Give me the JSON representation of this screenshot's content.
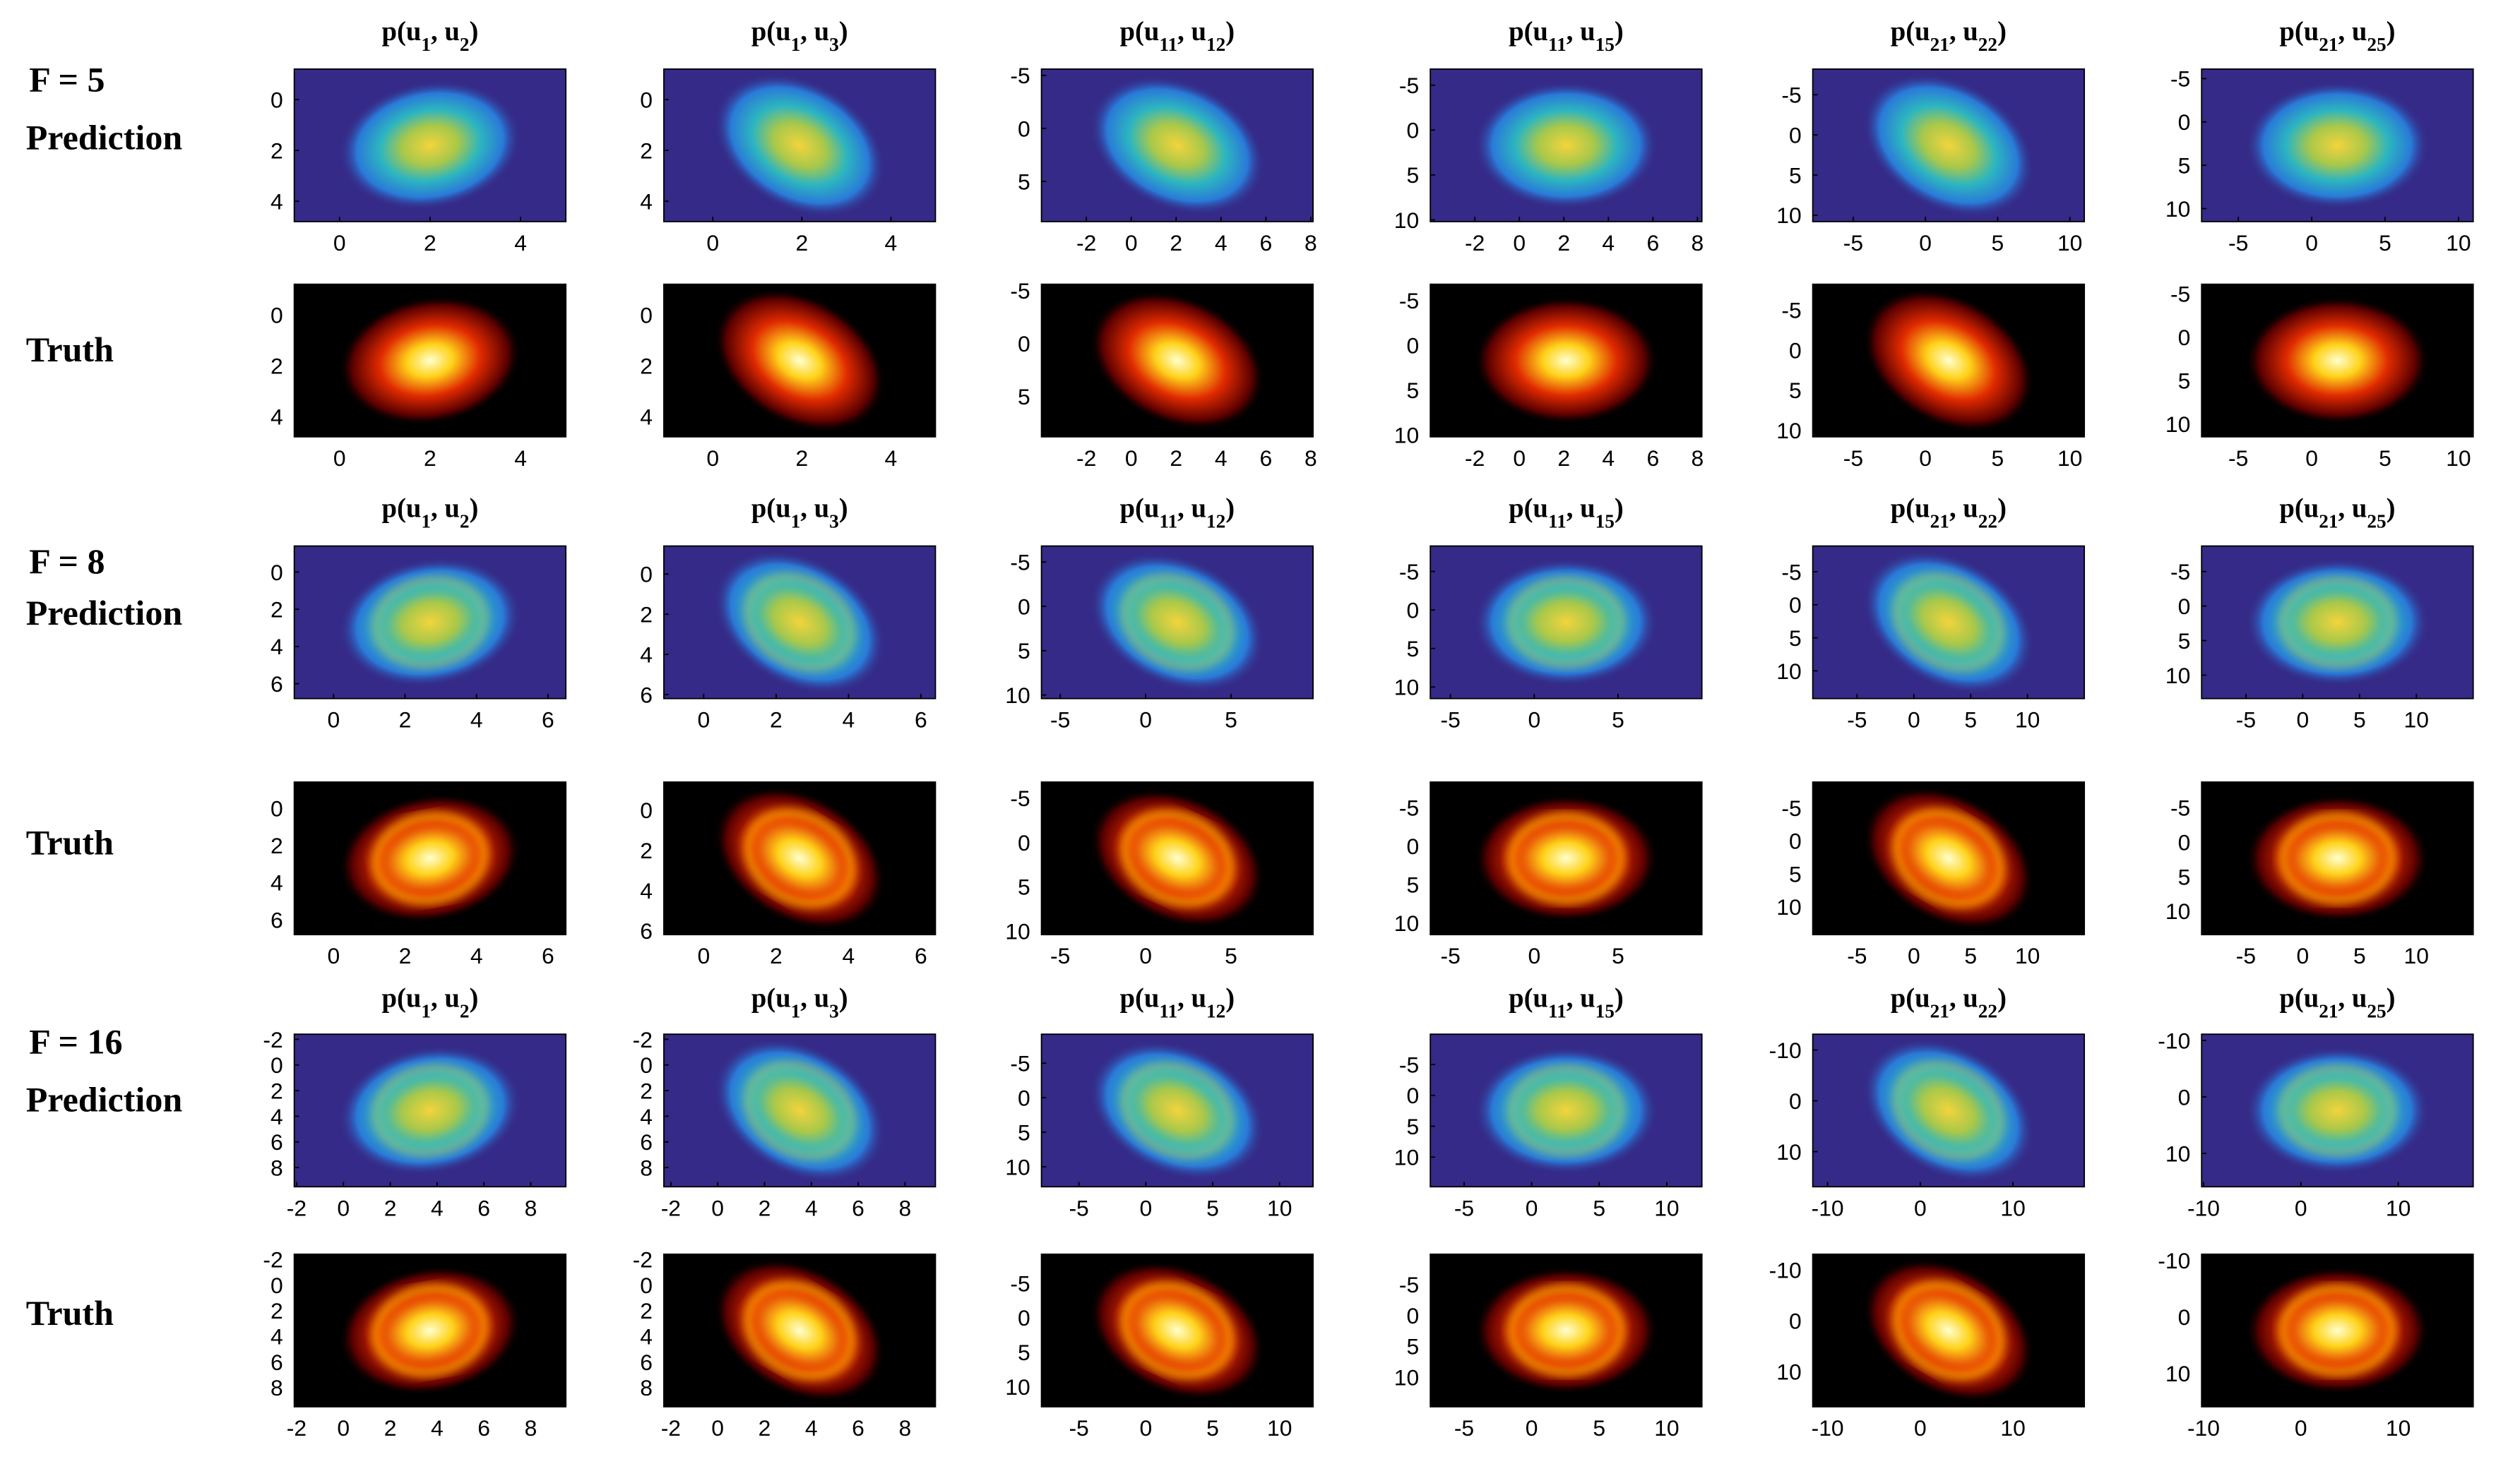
{
  "groups": [
    {
      "label": "F = 5",
      "rows": [
        {
          "label": "Prediction",
          "colormap": "parula"
        },
        {
          "label": "Truth",
          "colormap": "hot"
        }
      ],
      "y_reversed": true,
      "panels": [
        {
          "type": "heatmap",
          "title": [
            "p(u",
            "1",
            ", u",
            "2",
            ")"
          ],
          "xlim": [
            -1,
            5
          ],
          "ylim": [
            -1.2,
            4.8
          ],
          "xticks": [
            0,
            2,
            4
          ],
          "yticks": [
            0,
            2,
            4
          ]
        },
        {
          "type": "heatmap",
          "title": [
            "p(u",
            "1",
            ", u",
            "3",
            ")"
          ],
          "xlim": [
            -1.1,
            5
          ],
          "ylim": [
            -1.2,
            4.8
          ],
          "xticks": [
            0,
            2,
            4
          ],
          "yticks": [
            0,
            2,
            4
          ]
        },
        {
          "type": "heatmap",
          "title": [
            "p(u",
            "11",
            ", u",
            "12",
            ")"
          ],
          "xlim": [
            -4,
            8.1
          ],
          "ylim": [
            -5.6,
            8.8
          ],
          "xticks": [
            -2,
            0,
            2,
            4,
            6,
            8
          ],
          "yticks": [
            -5,
            0,
            5
          ]
        },
        {
          "type": "heatmap",
          "title": [
            "p(u",
            "11",
            ", u",
            "15",
            ")"
          ],
          "xlim": [
            -4,
            8.2
          ],
          "ylim": [
            -6.8,
            10.2
          ],
          "xticks": [
            -2,
            0,
            2,
            4,
            6,
            8
          ],
          "yticks": [
            -5,
            0,
            5,
            10
          ]
        },
        {
          "type": "heatmap",
          "title": [
            "p(u",
            "21",
            ", u",
            "22",
            ")"
          ],
          "xlim": [
            -7.8,
            11
          ],
          "ylim": [
            -8.2,
            10.8
          ],
          "xticks": [
            -5,
            0,
            5,
            10
          ],
          "yticks": [
            -5,
            0,
            5,
            10
          ]
        },
        {
          "type": "heatmap",
          "title": [
            "p(u",
            "21",
            ", u",
            "25",
            ")"
          ],
          "xlim": [
            -7.5,
            11
          ],
          "ylim": [
            -6.1,
            11.5
          ],
          "xticks": [
            -5,
            0,
            5,
            10
          ],
          "yticks": [
            -5,
            0,
            5,
            10
          ]
        }
      ]
    },
    {
      "label": "F = 8",
      "rows": [
        {
          "label": "Prediction",
          "colormap": "parula"
        },
        {
          "label": "Truth",
          "colormap": "hot"
        }
      ],
      "y_reversed": true,
      "panels": [
        {
          "type": "heatmap",
          "title": [
            "p(u",
            "1",
            ", u",
            "2",
            ")"
          ],
          "xlim": [
            -1.1,
            6.5
          ],
          "ylim": [
            -1.4,
            6.8
          ],
          "xticks": [
            0,
            2,
            4,
            6
          ],
          "yticks": [
            0,
            2,
            4,
            6
          ]
        },
        {
          "type": "heatmap",
          "title": [
            "p(u",
            "1",
            ", u",
            "3",
            ")"
          ],
          "xlim": [
            -1.1,
            6.4
          ],
          "ylim": [
            -1.4,
            6.2
          ],
          "xticks": [
            0,
            2,
            4,
            6
          ],
          "yticks": [
            0,
            2,
            4,
            6
          ]
        },
        {
          "type": "heatmap",
          "title": [
            "p(u",
            "11",
            ", u",
            "12",
            ")"
          ],
          "xlim": [
            -6.1,
            9.8
          ],
          "ylim": [
            -6.8,
            10.4
          ],
          "xticks": [
            -5,
            0,
            5
          ],
          "yticks": [
            -5,
            0,
            5,
            10
          ]
        },
        {
          "type": "heatmap",
          "title": [
            "p(u",
            "11",
            ", u",
            "15",
            ")"
          ],
          "xlim": [
            -6.2,
            10
          ],
          "ylim": [
            -8.3,
            11.5
          ],
          "xticks": [
            -5,
            0,
            5
          ],
          "yticks": [
            -5,
            0,
            5,
            10
          ]
        },
        {
          "type": "heatmap",
          "title": [
            "p(u",
            "21",
            ", u",
            "22",
            ")"
          ],
          "xlim": [
            -8.9,
            15
          ],
          "ylim": [
            -8.9,
            14.2
          ],
          "xticks": [
            -5,
            0,
            5,
            10
          ],
          "yticks": [
            -5,
            0,
            5,
            10
          ]
        },
        {
          "type": "heatmap",
          "title": [
            "p(u",
            "21",
            ", u",
            "25",
            ")"
          ],
          "xlim": [
            -8.9,
            15
          ],
          "ylim": [
            -8.7,
            13.4
          ],
          "xticks": [
            -5,
            0,
            5,
            10
          ],
          "yticks": [
            -5,
            0,
            5,
            10
          ]
        }
      ]
    },
    {
      "label": "F = 16",
      "rows": [
        {
          "label": "Prediction",
          "colormap": "parula"
        },
        {
          "label": "Truth",
          "colormap": "hot"
        }
      ],
      "y_reversed": true,
      "panels": [
        {
          "type": "heatmap",
          "title": [
            "p(u",
            "1",
            ", u",
            "2",
            ")"
          ],
          "xlim": [
            -2.1,
            9.5
          ],
          "ylim": [
            -2.4,
            9.5
          ],
          "xticks": [
            -2,
            0,
            2,
            4,
            6,
            8
          ],
          "yticks": [
            -2,
            0,
            2,
            4,
            6,
            8
          ]
        },
        {
          "type": "heatmap",
          "title": [
            "p(u",
            "1",
            ", u",
            "3",
            ")"
          ],
          "xlim": [
            -2.3,
            9.3
          ],
          "ylim": [
            -2.4,
            9.5
          ],
          "xticks": [
            -2,
            0,
            2,
            4,
            6,
            8
          ],
          "yticks": [
            -2,
            0,
            2,
            4,
            6,
            8
          ]
        },
        {
          "type": "heatmap",
          "title": [
            "p(u",
            "11",
            ", u",
            "12",
            ")"
          ],
          "xlim": [
            -7.8,
            12.5
          ],
          "ylim": [
            -9.2,
            12.9
          ],
          "xticks": [
            -5,
            0,
            5,
            10
          ],
          "yticks": [
            -5,
            0,
            5,
            10
          ]
        },
        {
          "type": "heatmap",
          "title": [
            "p(u",
            "11",
            ", u",
            "15",
            ")"
          ],
          "xlim": [
            -7.5,
            12.6
          ],
          "ylim": [
            -9.9,
            14.8
          ],
          "xticks": [
            -5,
            0,
            5,
            10
          ],
          "yticks": [
            -5,
            0,
            5,
            10
          ]
        },
        {
          "type": "heatmap",
          "title": [
            "p(u",
            "21",
            ", u",
            "22",
            ")"
          ],
          "xlim": [
            -11.6,
            17.7
          ],
          "ylim": [
            -13.1,
            16.9
          ],
          "xticks": [
            -10,
            0,
            10
          ],
          "yticks": [
            -10,
            0,
            10
          ]
        },
        {
          "type": "heatmap",
          "title": [
            "p(u",
            "21",
            ", u",
            "25",
            ")"
          ],
          "xlim": [
            -10.2,
            17.7
          ],
          "ylim": [
            -11.1,
            15.9
          ],
          "xticks": [
            -10,
            0,
            10
          ],
          "yticks": [
            -10,
            0,
            10
          ]
        }
      ]
    }
  ]
}
